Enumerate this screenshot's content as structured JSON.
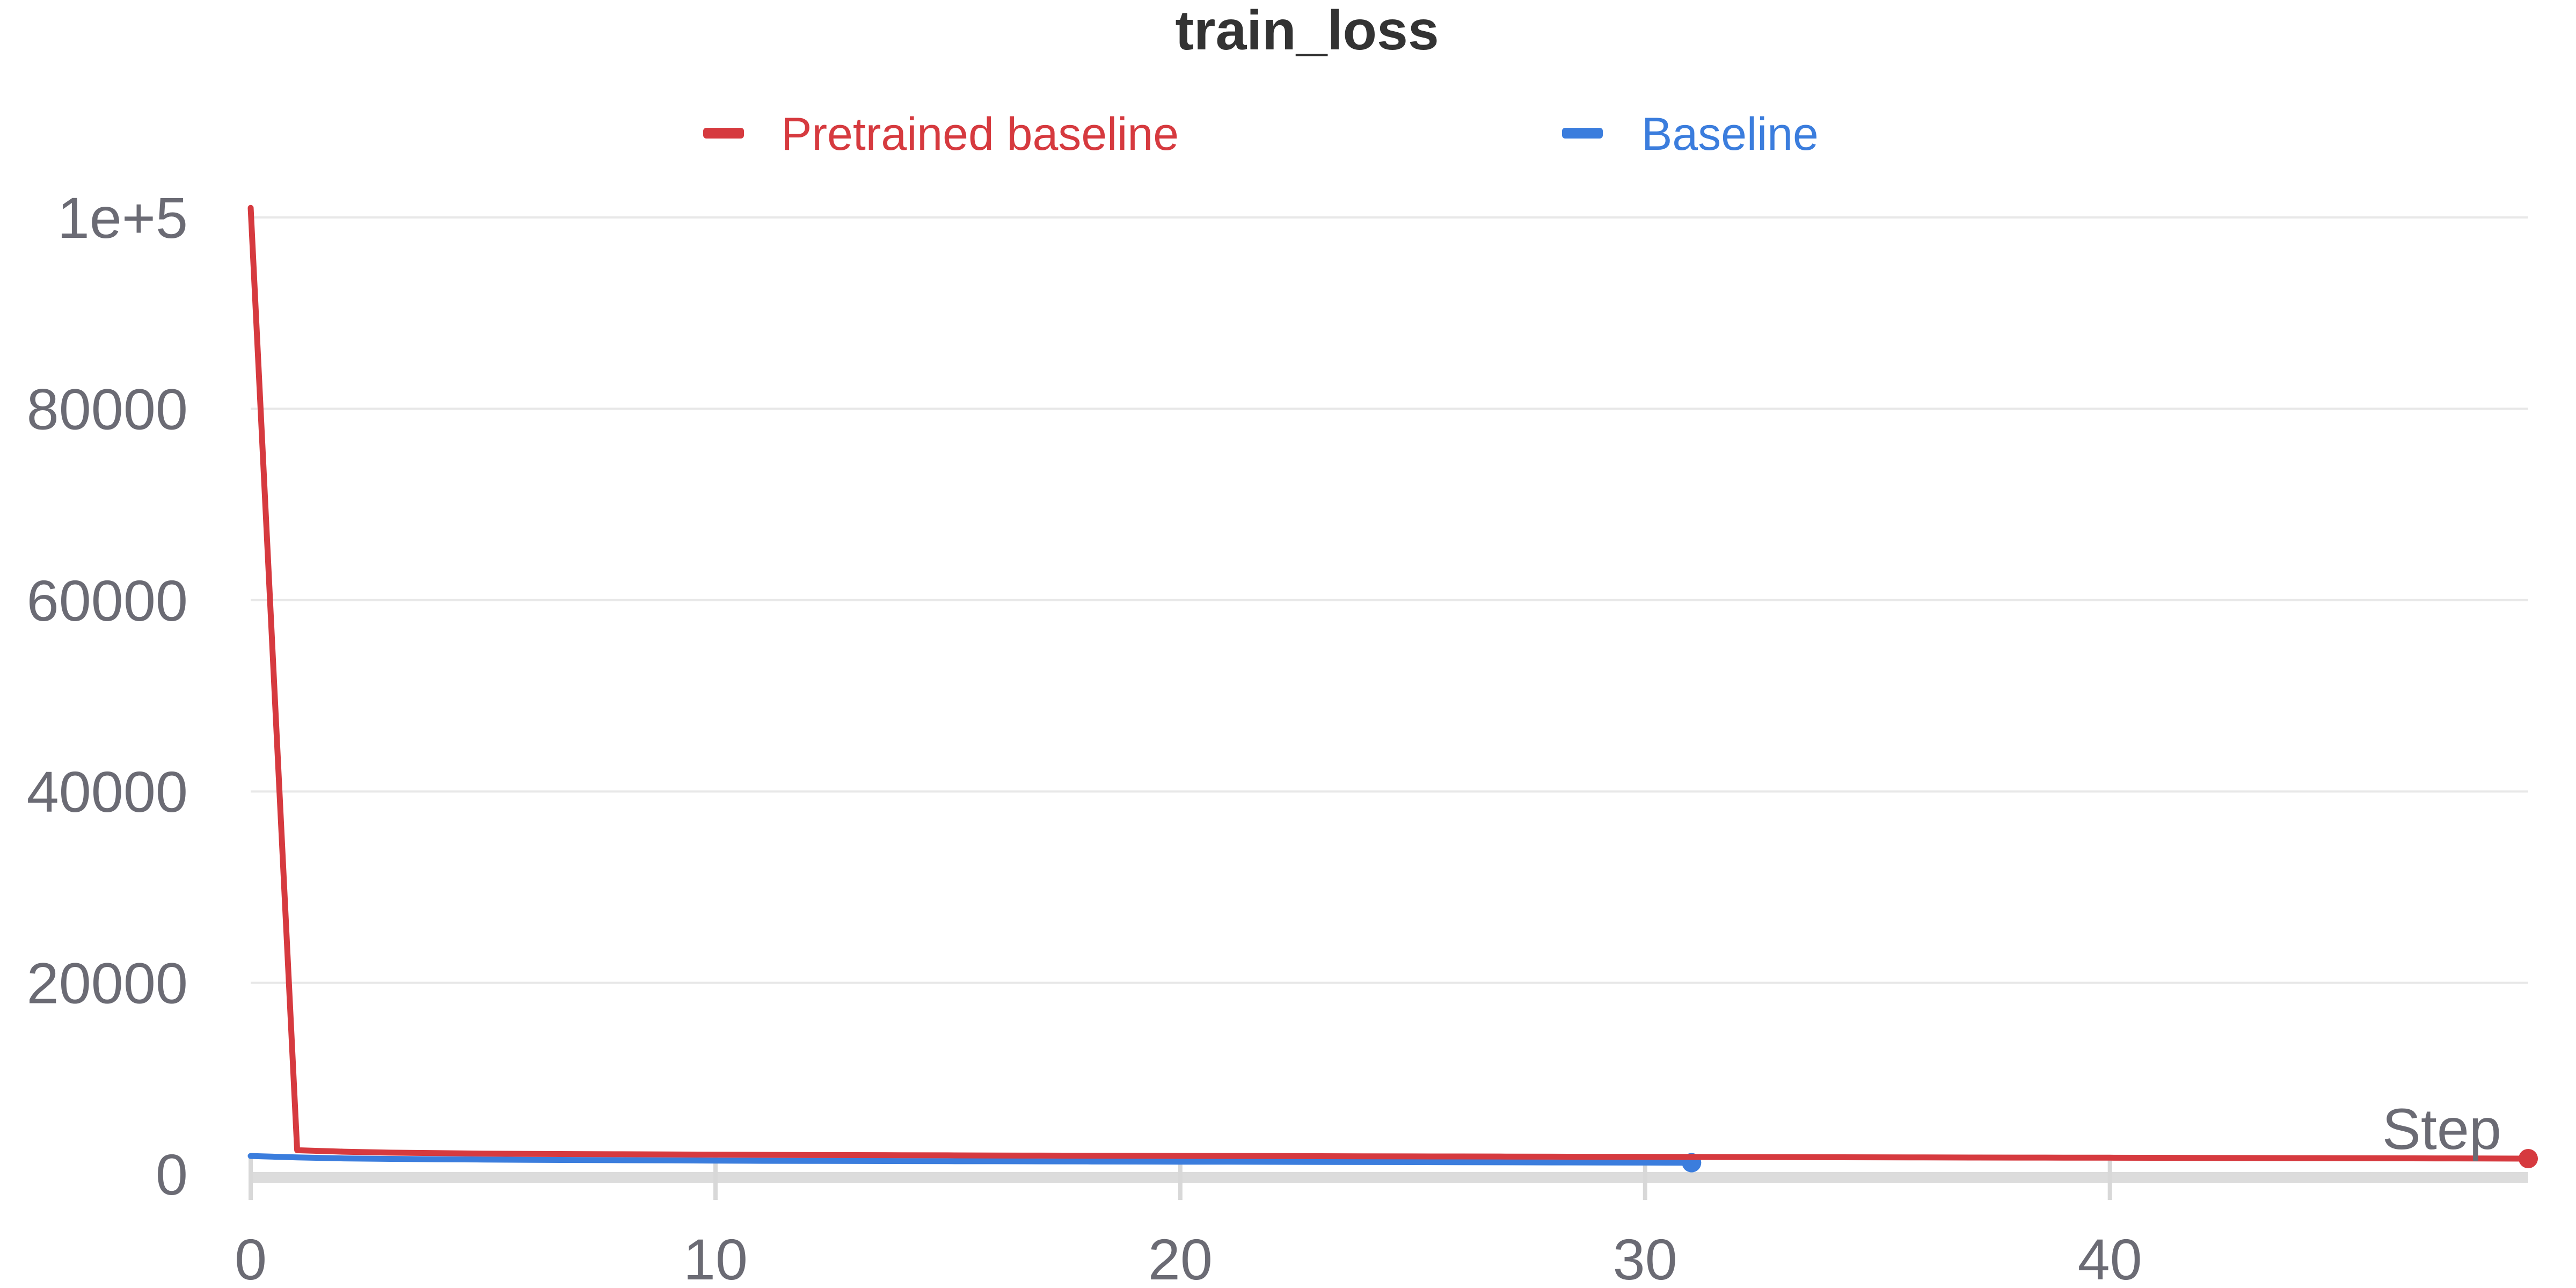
{
  "chart_data": {
    "type": "line",
    "title": "train_loss",
    "xlabel": "Step",
    "ylabel": "",
    "xlim": [
      0,
      49
    ],
    "ylim": [
      0,
      100000
    ],
    "x_ticks": [
      0,
      10,
      20,
      30,
      40
    ],
    "x_tick_labels": [
      "0",
      "10",
      "20",
      "30",
      "40"
    ],
    "y_ticks": [
      0,
      20000,
      40000,
      60000,
      80000,
      100000
    ],
    "y_tick_labels": [
      "0",
      "20000",
      "40000",
      "60000",
      "80000",
      "1e+5"
    ],
    "grid": true,
    "legend_position": "top",
    "series": [
      {
        "name": "Pretrained baseline",
        "color": "#d63a3f",
        "x": [
          0,
          1,
          2,
          3,
          4,
          5,
          6,
          7,
          8,
          9,
          10,
          11,
          12,
          13,
          14,
          15,
          16,
          17,
          18,
          19,
          20,
          21,
          22,
          23,
          24,
          25,
          26,
          27,
          28,
          29,
          30,
          31,
          32,
          33,
          34,
          35,
          36,
          37,
          38,
          39,
          40,
          41,
          42,
          43,
          44,
          45,
          46,
          47,
          48,
          49
        ],
        "y": [
          101000,
          2500,
          2350,
          2250,
          2200,
          2150,
          2120,
          2100,
          2080,
          2060,
          2040,
          2020,
          2000,
          1990,
          1980,
          1970,
          1950,
          1940,
          1930,
          1920,
          1910,
          1900,
          1890,
          1880,
          1870,
          1860,
          1850,
          1840,
          1830,
          1820,
          1810,
          1800,
          1790,
          1780,
          1770,
          1760,
          1750,
          1740,
          1735,
          1730,
          1720,
          1710,
          1700,
          1690,
          1680,
          1670,
          1660,
          1650,
          1640,
          1630
        ]
      },
      {
        "name": "Baseline",
        "color": "#3b7ddd",
        "x": [
          0,
          1,
          2,
          3,
          4,
          5,
          6,
          7,
          8,
          9,
          10,
          11,
          12,
          13,
          14,
          15,
          16,
          17,
          18,
          19,
          20,
          21,
          22,
          23,
          24,
          25,
          26,
          27,
          28,
          29,
          30,
          31
        ],
        "y": [
          1900,
          1750,
          1650,
          1600,
          1560,
          1530,
          1500,
          1480,
          1460,
          1440,
          1420,
          1400,
          1390,
          1380,
          1370,
          1360,
          1350,
          1340,
          1330,
          1320,
          1310,
          1300,
          1290,
          1280,
          1270,
          1260,
          1250,
          1240,
          1230,
          1220,
          1210,
          1200
        ]
      }
    ]
  }
}
